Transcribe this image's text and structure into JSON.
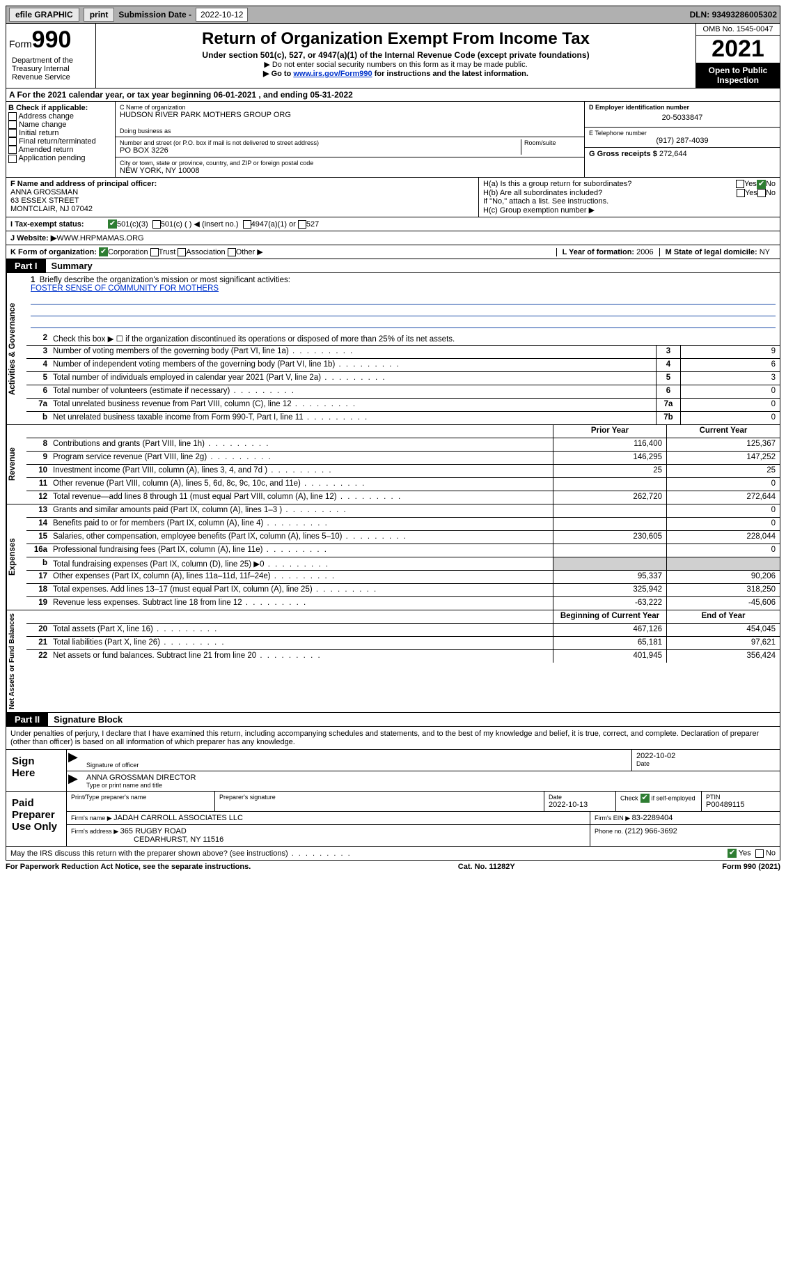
{
  "topbar": {
    "efile": "efile GRAPHIC",
    "print": "print",
    "subdate_label": "Submission Date - ",
    "subdate": "2022-10-12",
    "dln_label": "DLN: ",
    "dln": "93493286005302"
  },
  "header": {
    "form_label": "Form",
    "form_num": "990",
    "title": "Return of Organization Exempt From Income Tax",
    "subtitle": "Under section 501(c), 527, or 4947(a)(1) of the Internal Revenue Code (except private foundations)",
    "note1": "▶ Do not enter social security numbers on this form as it may be made public.",
    "note2_pre": "▶ Go to ",
    "note2_link": "www.irs.gov/Form990",
    "note2_post": " for instructions and the latest information.",
    "omb": "OMB No. 1545-0047",
    "year": "2021",
    "open": "Open to Public Inspection",
    "dept": "Department of the Treasury Internal Revenue Service"
  },
  "row_a": {
    "text_pre": "A For the 2021 calendar year, or tax year beginning ",
    "begin": "06-01-2021",
    "mid": " , and ending ",
    "end": "05-31-2022"
  },
  "col_b": {
    "title": "B Check if applicable:",
    "items": [
      "Address change",
      "Name change",
      "Initial return",
      "Final return/terminated",
      "Amended return",
      "Application pending"
    ]
  },
  "col_c": {
    "name_label": "C Name of organization",
    "name": "HUDSON RIVER PARK MOTHERS GROUP ORG",
    "dba_label": "Doing business as",
    "addr_label": "Number and street (or P.O. box if mail is not delivered to street address)",
    "room_label": "Room/suite",
    "addr": "PO BOX 3226",
    "city_label": "City or town, state or province, country, and ZIP or foreign postal code",
    "city": "NEW YORK, NY  10008"
  },
  "col_de": {
    "d_label": "D Employer identification number",
    "ein": "20-5033847",
    "e_label": "E Telephone number",
    "phone": "(917) 287-4039",
    "g_label": "G Gross receipts $ ",
    "gross": "272,644"
  },
  "col_f": {
    "label": "F Name and address of principal officer:",
    "name": "ANNA GROSSMAN",
    "street": "63 ESSEX STREET",
    "city": "MONTCLAIR, NJ  07042"
  },
  "col_h": {
    "ha": "H(a)  Is this a group return for subordinates?",
    "hb": "H(b)  Are all subordinates included?",
    "hb_note": "If \"No,\" attach a list. See instructions.",
    "hc": "H(c)  Group exemption number ▶",
    "yes": "Yes",
    "no": "No"
  },
  "row_i": {
    "label": "I   Tax-exempt status:",
    "opt1": "501(c)(3)",
    "opt2": "501(c) (   ) ◀ (insert no.)",
    "opt3": "4947(a)(1) or",
    "opt4": "527"
  },
  "row_j": {
    "label": "J   Website: ▶ ",
    "site": "WWW.HRPMAMAS.ORG"
  },
  "row_k": {
    "label": "K Form of organization:",
    "opts": [
      "Corporation",
      "Trust",
      "Association",
      "Other ▶"
    ],
    "l_label": "L Year of formation: ",
    "l_val": "2006",
    "m_label": "M State of legal domicile: ",
    "m_val": "NY"
  },
  "part1": {
    "tab": "Part I",
    "title": "Summary"
  },
  "summary": {
    "line1_label": "Briefly describe the organization's mission or most significant activities:",
    "line1_text": "FOSTER SENSE OF COMMUNITY FOR MOTHERS",
    "line2": "Check this box ▶ ☐  if the organization discontinued its operations or disposed of more than 25% of its net assets.",
    "rows_gov": [
      {
        "n": "3",
        "d": "Number of voting members of the governing body (Part VI, line 1a)",
        "box": "3",
        "v": "9"
      },
      {
        "n": "4",
        "d": "Number of independent voting members of the governing body (Part VI, line 1b)",
        "box": "4",
        "v": "6"
      },
      {
        "n": "5",
        "d": "Total number of individuals employed in calendar year 2021 (Part V, line 2a)",
        "box": "5",
        "v": "3"
      },
      {
        "n": "6",
        "d": "Total number of volunteers (estimate if necessary)",
        "box": "6",
        "v": "0"
      },
      {
        "n": "7a",
        "d": "Total unrelated business revenue from Part VIII, column (C), line 12",
        "box": "7a",
        "v": "0"
      },
      {
        "n": "b",
        "d": "Net unrelated business taxable income from Form 990-T, Part I, line 11",
        "box": "7b",
        "v": "0"
      }
    ],
    "hdr_prior": "Prior Year",
    "hdr_current": "Current Year",
    "rows_rev": [
      {
        "n": "8",
        "d": "Contributions and grants (Part VIII, line 1h)",
        "p": "116,400",
        "c": "125,367"
      },
      {
        "n": "9",
        "d": "Program service revenue (Part VIII, line 2g)",
        "p": "146,295",
        "c": "147,252"
      },
      {
        "n": "10",
        "d": "Investment income (Part VIII, column (A), lines 3, 4, and 7d )",
        "p": "25",
        "c": "25"
      },
      {
        "n": "11",
        "d": "Other revenue (Part VIII, column (A), lines 5, 6d, 8c, 9c, 10c, and 11e)",
        "p": "",
        "c": "0"
      },
      {
        "n": "12",
        "d": "Total revenue—add lines 8 through 11 (must equal Part VIII, column (A), line 12)",
        "p": "262,720",
        "c": "272,644"
      }
    ],
    "rows_exp": [
      {
        "n": "13",
        "d": "Grants and similar amounts paid (Part IX, column (A), lines 1–3 )",
        "p": "",
        "c": "0"
      },
      {
        "n": "14",
        "d": "Benefits paid to or for members (Part IX, column (A), line 4)",
        "p": "",
        "c": "0"
      },
      {
        "n": "15",
        "d": "Salaries, other compensation, employee benefits (Part IX, column (A), lines 5–10)",
        "p": "230,605",
        "c": "228,044"
      },
      {
        "n": "16a",
        "d": "Professional fundraising fees (Part IX, column (A), line 11e)",
        "p": "",
        "c": "0"
      },
      {
        "n": "b",
        "d": "Total fundraising expenses (Part IX, column (D), line 25) ▶0",
        "p": "shade",
        "c": "shade"
      },
      {
        "n": "17",
        "d": "Other expenses (Part IX, column (A), lines 11a–11d, 11f–24e)",
        "p": "95,337",
        "c": "90,206"
      },
      {
        "n": "18",
        "d": "Total expenses. Add lines 13–17 (must equal Part IX, column (A), line 25)",
        "p": "325,942",
        "c": "318,250"
      },
      {
        "n": "19",
        "d": "Revenue less expenses. Subtract line 18 from line 12",
        "p": "-63,222",
        "c": "-45,606"
      }
    ],
    "hdr_boy": "Beginning of Current Year",
    "hdr_eoy": "End of Year",
    "rows_net": [
      {
        "n": "20",
        "d": "Total assets (Part X, line 16)",
        "p": "467,126",
        "c": "454,045"
      },
      {
        "n": "21",
        "d": "Total liabilities (Part X, line 26)",
        "p": "65,181",
        "c": "97,621"
      },
      {
        "n": "22",
        "d": "Net assets or fund balances. Subtract line 21 from line 20",
        "p": "401,945",
        "c": "356,424"
      }
    ],
    "side_gov": "Activities & Governance",
    "side_rev": "Revenue",
    "side_exp": "Expenses",
    "side_net": "Net Assets or Fund Balances"
  },
  "part2": {
    "tab": "Part II",
    "title": "Signature Block"
  },
  "sig": {
    "intro": "Under penalties of perjury, I declare that I have examined this return, including accompanying schedules and statements, and to the best of my knowledge and belief, it is true, correct, and complete. Declaration of preparer (other than officer) is based on all information of which preparer has any knowledge.",
    "sign_here": "Sign Here",
    "sig_officer": "Signature of officer",
    "date_label": "Date",
    "date": "2022-10-02",
    "name_title": "ANNA GROSSMAN  DIRECTOR",
    "type_label": "Type or print name and title",
    "paid": "Paid Preparer Use Only",
    "prep_name_label": "Print/Type preparer's name",
    "prep_sig_label": "Preparer's signature",
    "prep_date_label": "Date",
    "prep_date": "2022-10-13",
    "check_label": "Check",
    "self_emp": "if self-employed",
    "ptin_label": "PTIN",
    "ptin": "P00489115",
    "firm_name_label": "Firm's name    ▶ ",
    "firm_name": "JADAH CARROLL ASSOCIATES LLC",
    "firm_ein_label": "Firm's EIN ▶ ",
    "firm_ein": "83-2289404",
    "firm_addr_label": "Firm's address ▶ ",
    "firm_addr1": "365 RUGBY ROAD",
    "firm_addr2": "CEDARHURST, NY  11516",
    "firm_phone_label": "Phone no. ",
    "firm_phone": "(212) 966-3692",
    "discuss": "May the IRS discuss this return with the preparer shown above? (see instructions)"
  },
  "footer": {
    "pra": "For Paperwork Reduction Act Notice, see the separate instructions.",
    "cat": "Cat. No. 11282Y",
    "form": "Form 990 (2021)"
  }
}
